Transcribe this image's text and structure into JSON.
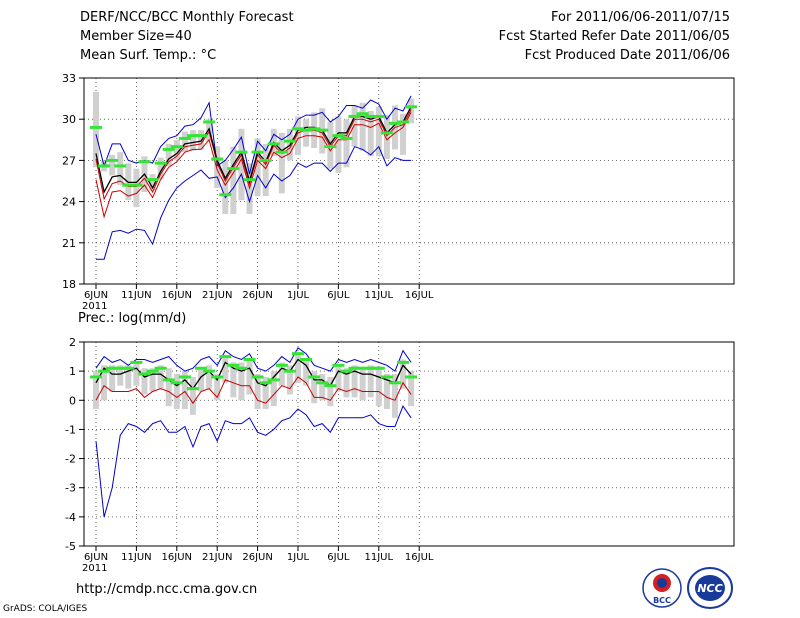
{
  "header": {
    "title": "DERF/NCC/BCC Monthly Forecast",
    "member_size": "Member Size=40",
    "variable": "Mean Surf. Temp.: °C",
    "forecast_period": "For 2011/06/06-2011/07/15",
    "started_date": "Fcst Started Refer Date 2011/06/05",
    "produced_date": "Fcst Produced Date 2011/06/06"
  },
  "footer": {
    "url": "http://cmdp.ncc.cma.gov.cn",
    "software": "GrADS: COLA/IGES"
  },
  "logos": {
    "bcc": "BCC",
    "ncc": "NCC"
  },
  "colors": {
    "ensemble_mean": "#000000",
    "max": "#0000cc",
    "min": "#0000cc",
    "mid": "#cc0000",
    "median": "#33e633",
    "range": "#d0d0d0"
  },
  "chart_data": [
    {
      "type": "line",
      "name": "temperature",
      "title": "Mean Surf. Temp.: °C",
      "ylim": [
        18,
        33
      ],
      "yticks": [
        18,
        21,
        24,
        27,
        30,
        33
      ],
      "x_ticks": [
        {
          "day": 0,
          "label": "6JUN"
        },
        {
          "day": 5,
          "label": "11JUN"
        },
        {
          "day": 10,
          "label": "16JUN"
        },
        {
          "day": 15,
          "label": "21JUN"
        },
        {
          "day": 20,
          "label": "26JUN"
        },
        {
          "day": 25,
          "label": "1JUL"
        },
        {
          "day": 30,
          "label": "6JUL"
        },
        {
          "day": 35,
          "label": "11JUL"
        },
        {
          "day": 40,
          "label": "16JUL"
        }
      ],
      "year_label": "2011",
      "grid": true,
      "series": [
        {
          "name": "max",
          "color": "#0000cc",
          "values": [
            28.9,
            26.6,
            28.2,
            28.2,
            27.0,
            26.8,
            27.0,
            26.8,
            28.0,
            28.6,
            28.8,
            29.5,
            29.6,
            30.1,
            31.2,
            26.6,
            27.0,
            27.8,
            28.7,
            26.0,
            28.4,
            27.7,
            28.9,
            28.5,
            28.9,
            30.0,
            30.3,
            30.3,
            30.5,
            29.8,
            30.2,
            31.0,
            31.0,
            30.8,
            31.4,
            31.1,
            30.0,
            30.8,
            30.6,
            31.7
          ]
        },
        {
          "name": "ensemble_mean",
          "color": "#000000",
          "values": [
            27.5,
            24.7,
            25.8,
            25.9,
            25.4,
            25.4,
            26.0,
            25.0,
            26.2,
            27.1,
            27.5,
            28.2,
            28.3,
            28.4,
            29.3,
            27.0,
            25.7,
            26.7,
            27.6,
            25.5,
            27.6,
            26.9,
            28.3,
            27.7,
            28.1,
            29.2,
            29.4,
            29.4,
            29.2,
            28.2,
            29.0,
            29.0,
            30.2,
            30.2,
            30.0,
            30.2,
            29.0,
            29.6,
            29.8,
            30.9
          ]
        },
        {
          "name": "mid",
          "color": "#cc0000",
          "values": [
            27.1,
            24.2,
            25.3,
            25.5,
            25.1,
            25.1,
            25.7,
            24.7,
            26.0,
            26.9,
            27.3,
            28.0,
            28.1,
            28.2,
            29.1,
            26.8,
            25.5,
            26.5,
            27.4,
            25.3,
            27.4,
            26.7,
            28.1,
            27.5,
            27.9,
            29.0,
            29.2,
            29.2,
            29.0,
            28.0,
            28.8,
            28.8,
            30.0,
            30.0,
            29.8,
            30.0,
            28.8,
            29.4,
            29.6,
            30.7
          ]
        },
        {
          "name": "min",
          "color": "#cc0000",
          "values": [
            25.6,
            22.9,
            24.7,
            24.8,
            24.4,
            24.6,
            25.2,
            24.3,
            25.6,
            26.5,
            26.9,
            27.6,
            27.8,
            27.8,
            28.5,
            26.3,
            25.2,
            26.1,
            27.1,
            25.0,
            27.0,
            26.4,
            27.6,
            27.2,
            27.5,
            28.6,
            28.8,
            28.8,
            28.7,
            27.7,
            28.5,
            28.5,
            29.6,
            29.6,
            29.4,
            29.7,
            28.5,
            29.0,
            29.4,
            30.5
          ]
        },
        {
          "name": "lower_bound",
          "color": "#0000cc",
          "values": [
            19.8,
            19.8,
            21.8,
            21.9,
            21.7,
            22.0,
            21.9,
            20.9,
            22.8,
            24.1,
            25.0,
            25.5,
            25.9,
            26.3,
            25.7,
            25.8,
            24.3,
            25.0,
            26.0,
            24.0,
            25.9,
            25.0,
            26.0,
            25.5,
            25.9,
            26.8,
            26.5,
            26.8,
            26.8,
            26.2,
            26.8,
            26.8,
            28.0,
            27.8,
            27.4,
            28.0,
            26.6,
            27.2,
            27.0,
            27.0
          ]
        },
        {
          "name": "median",
          "color": "#33e633",
          "values": [
            29.4,
            26.6,
            27.0,
            26.6,
            25.2,
            25.2,
            26.9,
            25.6,
            26.8,
            27.8,
            28.0,
            28.6,
            28.8,
            28.8,
            29.8,
            27.1,
            24.5,
            26.4,
            27.6,
            25.6,
            27.6,
            27.0,
            28.2,
            27.6,
            28.4,
            29.3,
            29.2,
            29.3,
            29.2,
            28.0,
            28.8,
            28.6,
            30.2,
            30.4,
            30.2,
            30.2,
            29.0,
            29.7,
            29.8,
            30.9
          ]
        },
        {
          "name": "range_high",
          "color": "#d0d0d0",
          "values": [
            32.0,
            27.0,
            27.4,
            27.6,
            26.8,
            26.4,
            27.3,
            26.0,
            27.2,
            28.2,
            28.5,
            29.1,
            29.2,
            29.2,
            30.0,
            28.0,
            27.0,
            28.0,
            29.3,
            26.8,
            28.6,
            28.2,
            29.3,
            29.0,
            29.3,
            30.2,
            30.0,
            30.5,
            30.8,
            29.8,
            30.2,
            30.0,
            31.0,
            31.2,
            30.6,
            30.9,
            30.3,
            31.0,
            30.4,
            31.5
          ]
        },
        {
          "name": "range_low",
          "color": "#d0d0d0",
          "values": [
            26.5,
            26.2,
            25.9,
            25.2,
            24.1,
            23.6,
            24.7,
            24.8,
            25.6,
            26.6,
            27.0,
            27.6,
            27.7,
            27.8,
            28.4,
            25.0,
            23.1,
            23.1,
            24.1,
            23.1,
            24.4,
            24.4,
            27.3,
            24.6,
            27.0,
            27.4,
            28.0,
            27.9,
            27.5,
            26.4,
            26.1,
            26.5,
            28.0,
            27.7,
            27.3,
            27.3,
            27.1,
            27.8,
            27.4,
            29.7
          ]
        }
      ]
    },
    {
      "type": "line",
      "name": "precipitation",
      "title": "Prec.: log(mm/d)",
      "ylim": [
        -5,
        2
      ],
      "yticks": [
        -5,
        -4,
        -3,
        -2,
        -1,
        0,
        1,
        2
      ],
      "x_ticks": [
        {
          "day": 0,
          "label": "6JUN"
        },
        {
          "day": 5,
          "label": "11JUN"
        },
        {
          "day": 10,
          "label": "16JUN"
        },
        {
          "day": 15,
          "label": "21JUN"
        },
        {
          "day": 20,
          "label": "26JUN"
        },
        {
          "day": 25,
          "label": "1JUL"
        },
        {
          "day": 30,
          "label": "6JUL"
        },
        {
          "day": 35,
          "label": "11JUL"
        },
        {
          "day": 40,
          "label": "16JUL"
        }
      ],
      "year_label": "2011",
      "grid": true,
      "series": [
        {
          "name": "max",
          "color": "#0000cc",
          "values": [
            1.1,
            1.5,
            1.3,
            1.4,
            1.2,
            1.4,
            1.4,
            1.3,
            1.4,
            1.5,
            1.2,
            1.0,
            1.1,
            1.4,
            1.5,
            1.2,
            1.7,
            1.5,
            1.4,
            1.6,
            1.1,
            1.0,
            1.2,
            1.5,
            1.3,
            1.8,
            1.6,
            1.2,
            1.1,
            1.0,
            1.4,
            1.3,
            1.4,
            1.3,
            1.4,
            1.3,
            1.2,
            1.0,
            1.7,
            1.3
          ]
        },
        {
          "name": "ensemble_mean",
          "color": "#000000",
          "values": [
            0.6,
            1.1,
            0.9,
            0.9,
            1.0,
            1.1,
            0.8,
            0.9,
            0.9,
            0.7,
            0.5,
            0.7,
            0.4,
            0.8,
            1.0,
            0.7,
            1.3,
            1.1,
            1.0,
            1.1,
            0.6,
            0.5,
            0.8,
            1.1,
            1.0,
            1.4,
            1.2,
            0.7,
            0.7,
            0.5,
            1.0,
            0.9,
            1.0,
            0.9,
            0.9,
            0.8,
            0.7,
            0.6,
            1.2,
            0.9
          ]
        },
        {
          "name": "mid",
          "color": "#cc0000",
          "values": [
            0.0,
            0.5,
            0.3,
            0.3,
            0.3,
            0.4,
            0.1,
            0.3,
            0.4,
            0.3,
            0.1,
            0.3,
            -0.1,
            0.3,
            0.4,
            0.1,
            0.7,
            0.6,
            0.5,
            0.5,
            0.0,
            -0.1,
            0.2,
            0.5,
            0.4,
            0.8,
            0.6,
            0.1,
            0.1,
            0.0,
            0.4,
            0.3,
            0.4,
            0.3,
            0.3,
            0.3,
            0.1,
            0.0,
            0.6,
            0.2
          ]
        },
        {
          "name": "lower_bound",
          "color": "#0000cc",
          "values": [
            -1.4,
            -4.0,
            -3.0,
            -1.2,
            -0.8,
            -0.9,
            -1.1,
            -0.8,
            -0.7,
            -1.1,
            -1.1,
            -0.9,
            -1.6,
            -0.9,
            -0.8,
            -1.4,
            -0.7,
            -0.8,
            -0.8,
            -0.6,
            -1.1,
            -1.2,
            -1.0,
            -0.7,
            -0.6,
            -0.3,
            -0.5,
            -0.9,
            -0.8,
            -1.1,
            -0.6,
            -0.6,
            -0.6,
            -0.6,
            -0.5,
            -0.8,
            -0.9,
            -0.9,
            -0.2,
            -0.6
          ]
        },
        {
          "name": "median",
          "color": "#33e633",
          "values": [
            0.8,
            1.0,
            1.1,
            1.1,
            1.1,
            1.3,
            0.9,
            1.0,
            1.1,
            0.7,
            0.6,
            0.8,
            0.4,
            1.1,
            1.0,
            0.8,
            1.5,
            1.2,
            1.1,
            1.4,
            0.8,
            0.6,
            0.7,
            1.2,
            1.0,
            1.6,
            1.4,
            0.8,
            0.6,
            0.5,
            1.2,
            1.0,
            1.1,
            1.1,
            1.1,
            1.1,
            0.8,
            0.6,
            1.3,
            0.8
          ]
        },
        {
          "name": "range_high",
          "color": "#d0d0d0",
          "values": [
            1.0,
            1.2,
            1.2,
            1.2,
            1.2,
            1.3,
            1.1,
            1.1,
            1.2,
            1.1,
            0.9,
            1.0,
            0.8,
            1.1,
            1.2,
            0.9,
            1.5,
            1.3,
            1.3,
            1.4,
            0.9,
            0.8,
            1.0,
            1.3,
            1.2,
            1.6,
            1.4,
            1.0,
            0.9,
            0.8,
            1.2,
            1.1,
            1.2,
            1.1,
            1.2,
            1.1,
            0.9,
            0.9,
            1.4,
            1.0
          ]
        },
        {
          "name": "range_low",
          "color": "#d0d0d0",
          "values": [
            -0.3,
            0.0,
            0.3,
            0.5,
            0.4,
            0.5,
            0.2,
            0.3,
            0.4,
            -0.2,
            -0.3,
            -0.3,
            -0.5,
            0.3,
            0.4,
            0.0,
            0.6,
            0.1,
            0.0,
            0.2,
            -0.3,
            -0.3,
            -0.2,
            0.5,
            0.2,
            0.6,
            0.5,
            -0.1,
            0.0,
            -0.2,
            0.3,
            0.1,
            0.1,
            0.0,
            0.1,
            -0.2,
            -0.3,
            -0.6,
            0.4,
            -0.2
          ]
        }
      ]
    }
  ]
}
